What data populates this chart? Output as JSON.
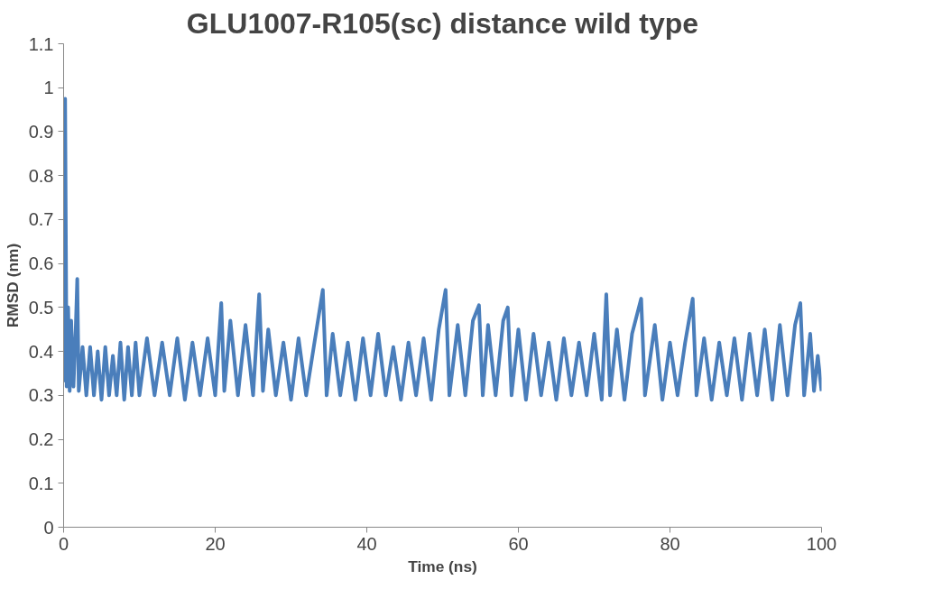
{
  "chart_data": {
    "type": "line",
    "title": "GLU1007-R105(sc) distance wild type",
    "xlabel": "Time (ns)",
    "ylabel": "RMSD (nm)",
    "xlim": [
      0,
      100
    ],
    "xticks": [
      0,
      20,
      40,
      60,
      80,
      100
    ],
    "ylim": [
      0,
      1.1
    ],
    "yticks": [
      0,
      0.1,
      0.2,
      0.3,
      0.4,
      0.5,
      0.6,
      0.7,
      0.8,
      0.9,
      1,
      1.1
    ],
    "grid": false,
    "marker": "none",
    "line_style": "solid",
    "series": [
      {
        "color": "#4a7ebb",
        "x": [
          0,
          0.2,
          0.4,
          0.6,
          0.8,
          1.0,
          1.3,
          1.6,
          1.8,
          2.0,
          2.5,
          3,
          3.5,
          4,
          4.5,
          5,
          5.5,
          6,
          6.5,
          7,
          7.5,
          8,
          8.5,
          9,
          9.5,
          10,
          11,
          12,
          13,
          14,
          15,
          16,
          17,
          18,
          19,
          20,
          20.8,
          21.2,
          22,
          23,
          24,
          25,
          25.8,
          26.3,
          27,
          28,
          29,
          30,
          31,
          32,
          33,
          34.2,
          34.7,
          35.5,
          36.5,
          37.5,
          38.5,
          39.5,
          40.5,
          41.5,
          42.5,
          43.5,
          44.5,
          45.5,
          46.5,
          47.5,
          48.5,
          49.5,
          50.4,
          50.9,
          52,
          53,
          54,
          54.8,
          55.3,
          56,
          57,
          58,
          58.6,
          59.1,
          60,
          61,
          62,
          63,
          64,
          65,
          66,
          67,
          68,
          69,
          70,
          71,
          71.6,
          72.1,
          73,
          74,
          75,
          76.2,
          76.7,
          78,
          79,
          80,
          81,
          82,
          83,
          83.5,
          84.5,
          85.5,
          86.5,
          87.5,
          88.5,
          89.5,
          90.5,
          91.5,
          92.5,
          93.5,
          94.5,
          95.5,
          96.5,
          97.2,
          97.7,
          98.5,
          99,
          99.5,
          100
        ],
        "values": [
          0.33,
          0.975,
          0.32,
          0.5,
          0.31,
          0.47,
          0.32,
          0.45,
          0.565,
          0.31,
          0.41,
          0.3,
          0.41,
          0.3,
          0.4,
          0.29,
          0.41,
          0.3,
          0.39,
          0.3,
          0.42,
          0.29,
          0.41,
          0.3,
          0.42,
          0.3,
          0.43,
          0.3,
          0.42,
          0.3,
          0.43,
          0.29,
          0.42,
          0.3,
          0.43,
          0.3,
          0.51,
          0.31,
          0.47,
          0.3,
          0.46,
          0.3,
          0.53,
          0.31,
          0.45,
          0.3,
          0.42,
          0.29,
          0.43,
          0.3,
          0.41,
          0.54,
          0.3,
          0.44,
          0.3,
          0.42,
          0.29,
          0.43,
          0.3,
          0.44,
          0.3,
          0.41,
          0.29,
          0.42,
          0.3,
          0.43,
          0.29,
          0.45,
          0.54,
          0.3,
          0.46,
          0.3,
          0.47,
          0.505,
          0.3,
          0.46,
          0.3,
          0.47,
          0.5,
          0.3,
          0.45,
          0.29,
          0.44,
          0.3,
          0.42,
          0.29,
          0.43,
          0.3,
          0.42,
          0.3,
          0.44,
          0.29,
          0.53,
          0.3,
          0.45,
          0.29,
          0.44,
          0.52,
          0.3,
          0.46,
          0.29,
          0.42,
          0.3,
          0.42,
          0.52,
          0.3,
          0.43,
          0.29,
          0.42,
          0.3,
          0.43,
          0.29,
          0.44,
          0.3,
          0.45,
          0.29,
          0.46,
          0.3,
          0.46,
          0.51,
          0.3,
          0.44,
          0.31,
          0.39,
          0.31
        ]
      }
    ]
  }
}
